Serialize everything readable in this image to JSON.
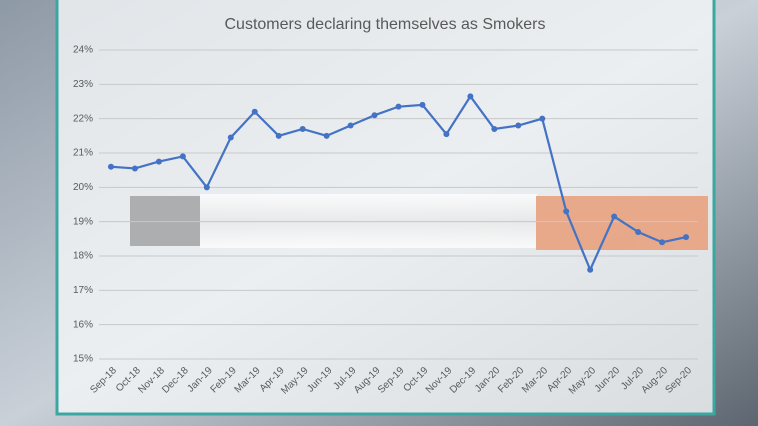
{
  "chart_data": {
    "type": "line",
    "title": "Customers declaring themselves as Smokers",
    "categories": [
      "Sep-18",
      "Oct-18",
      "Nov-18",
      "Dec-18",
      "Jan-19",
      "Feb-19",
      "Mar-19",
      "Apr-19",
      "May-19",
      "Jun-19",
      "Jul-19",
      "Aug-19",
      "Sep-19",
      "Oct-19",
      "Nov-19",
      "Dec-19",
      "Jan-20",
      "Feb-20",
      "Mar-20",
      "Apr-20",
      "May-20",
      "Jun-20",
      "Jul-20",
      "Aug-20",
      "Sep-20"
    ],
    "series": [
      {
        "color": "#4472c4",
        "values": [
          20.6,
          20.55,
          20.75,
          20.9,
          20.0,
          21.45,
          22.2,
          21.5,
          21.7,
          21.5,
          21.8,
          22.1,
          22.35,
          22.4,
          21.55,
          22.65,
          21.7,
          21.8,
          22.0,
          19.3,
          17.6,
          19.15,
          18.7,
          18.4,
          18.55
        ]
      }
    ],
    "ylim": [
      15,
      24
    ],
    "yticks": [
      {
        "value": 15,
        "label": "15%"
      },
      {
        "value": 16,
        "label": "16%"
      },
      {
        "value": 17,
        "label": "17%"
      },
      {
        "value": 18,
        "label": "18%"
      },
      {
        "value": 19,
        "label": "19%"
      },
      {
        "value": 20,
        "label": "20%"
      },
      {
        "value": 21,
        "label": "21%"
      },
      {
        "value": 22,
        "label": "22%"
      },
      {
        "value": 23,
        "label": "23%"
      },
      {
        "value": 24,
        "label": "24%"
      }
    ],
    "grid": true
  }
}
